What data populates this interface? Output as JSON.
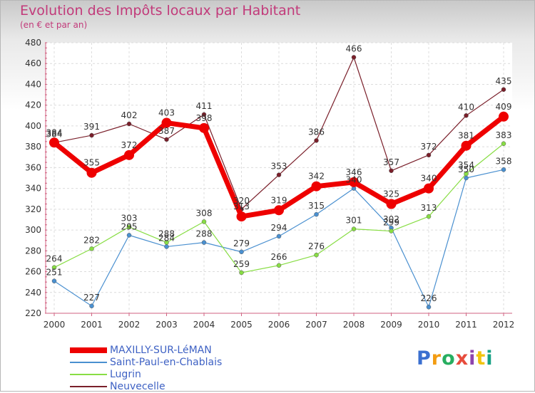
{
  "chart_data": {
    "type": "line",
    "title": "Evolution des Impôts locaux par Habitant",
    "subtitle": "(en € et par an)",
    "xlabel": "",
    "ylabel": "",
    "ylim": [
      220,
      480
    ],
    "yticks": [
      220,
      240,
      260,
      280,
      300,
      320,
      340,
      360,
      380,
      400,
      420,
      440,
      460,
      480
    ],
    "categories": [
      "2000",
      "2001",
      "2002",
      "2003",
      "2004",
      "2005",
      "2006",
      "2007",
      "2008",
      "2009",
      "2010",
      "2011",
      "2012"
    ],
    "series": [
      {
        "name": "MAXILLY-SUR-LéMAN",
        "color": "#ee0000",
        "values": [
          384,
          355,
          372,
          403,
          398,
          313,
          319,
          342,
          346,
          325,
          340,
          381,
          409
        ]
      },
      {
        "name": "Saint-Paul-en-Chablais",
        "color": "#4a90d0",
        "values": [
          251,
          227,
          295,
          284,
          288,
          279,
          294,
          315,
          340,
          302,
          226,
          350,
          358
        ]
      },
      {
        "name": "Lugrin",
        "color": "#88dd44",
        "values": [
          264,
          282,
          303,
          288,
          308,
          259,
          266,
          276,
          301,
          299,
          313,
          354,
          383
        ]
      },
      {
        "name": "Neuvecelle",
        "color": "#7a1f2a",
        "values": [
          384,
          391,
          402,
          387,
          411,
          320,
          353,
          386,
          466,
          357,
          372,
          410,
          435
        ]
      }
    ],
    "grid": true,
    "legend_position": "bottom-left"
  },
  "logo": {
    "text": "Proxiti",
    "colors": [
      "#3a6fd0",
      "#f39c12",
      "#27ae60",
      "#e74c3c",
      "#8e44ad",
      "#f1c40f",
      "#16a085"
    ]
  }
}
